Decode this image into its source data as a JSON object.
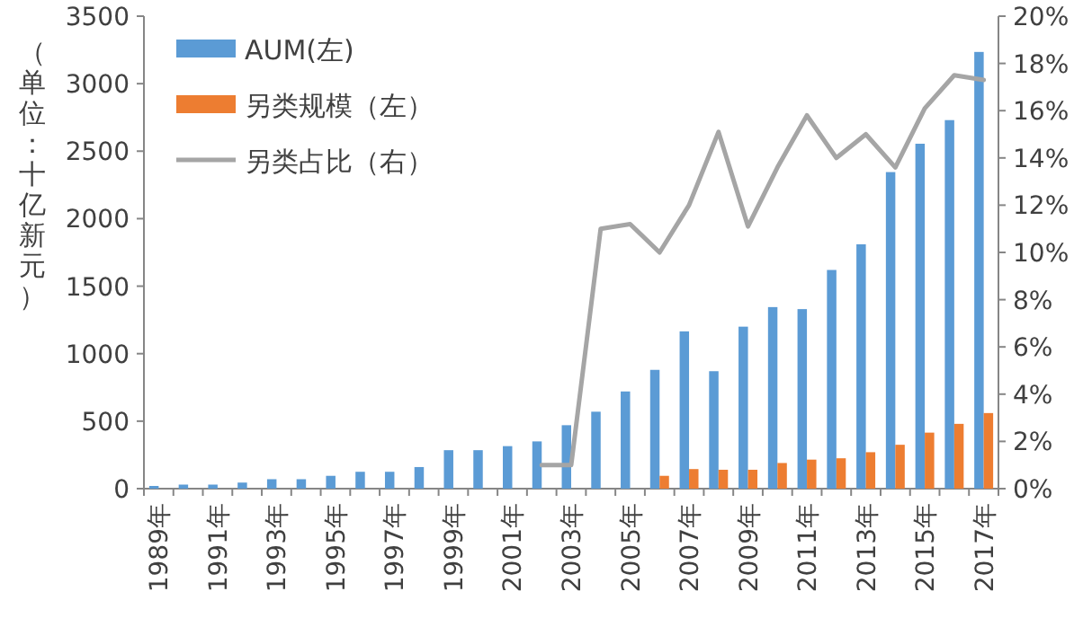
{
  "chart_data": {
    "type": "bar",
    "ylabel": "（单位：十亿新元）",
    "categories": [
      "1989年",
      null,
      "1991年",
      null,
      "1993年",
      null,
      "1995年",
      null,
      "1997年",
      null,
      "1999年",
      null,
      "2001年",
      null,
      "2003年",
      null,
      "2005年",
      null,
      "2007年",
      null,
      "2009年",
      null,
      "2011年",
      null,
      "2013年",
      null,
      "2015年",
      null,
      "2017年"
    ],
    "series": [
      {
        "name": "AUM(左)",
        "color": "#5b9bd5",
        "values": [
          20,
          30,
          30,
          45,
          70,
          70,
          95,
          125,
          125,
          160,
          285,
          285,
          315,
          350,
          470,
          570,
          720,
          880,
          1165,
          870,
          1200,
          1345,
          1330,
          1620,
          1810,
          2345,
          2555,
          2730,
          3235
        ]
      },
      {
        "name": "另类规模（左）",
        "color": "#ed7d31",
        "values": [
          null,
          null,
          null,
          null,
          null,
          null,
          null,
          null,
          null,
          null,
          null,
          null,
          null,
          null,
          null,
          null,
          null,
          95,
          145,
          140,
          140,
          190,
          215,
          225,
          270,
          325,
          415,
          480,
          560
        ]
      },
      {
        "name": "另类占比（右）",
        "type": "line",
        "axis": "y2",
        "color": "#a5a5a5",
        "values": [
          null,
          null,
          null,
          null,
          null,
          null,
          null,
          null,
          null,
          null,
          null,
          null,
          null,
          1,
          1,
          11.0,
          11.2,
          10.0,
          12.0,
          15.1,
          11.1,
          13.6,
          15.8,
          14.0,
          15.0,
          13.6,
          16.1,
          17.5,
          17.3
        ]
      }
    ],
    "ylim": [
      0,
      3500
    ],
    "yticks": [
      0,
      500,
      1000,
      1500,
      2000,
      2500,
      3000,
      3500
    ],
    "y2lim": [
      0,
      20
    ],
    "y2ticks": [
      {
        "value": 0,
        "label": "0%"
      },
      {
        "value": 2,
        "label": "2%"
      },
      {
        "value": 4,
        "label": "4%"
      },
      {
        "value": 6,
        "label": "6%"
      },
      {
        "value": 8,
        "label": "8%"
      },
      {
        "value": 10,
        "label": "10%"
      },
      {
        "value": 12,
        "label": "12%"
      },
      {
        "value": 14,
        "label": "14%"
      },
      {
        "value": 16,
        "label": "16%"
      },
      {
        "value": 18,
        "label": "18%"
      },
      {
        "value": 20,
        "label": "20%"
      }
    ],
    "legend": "top left",
    "grid": false
  }
}
